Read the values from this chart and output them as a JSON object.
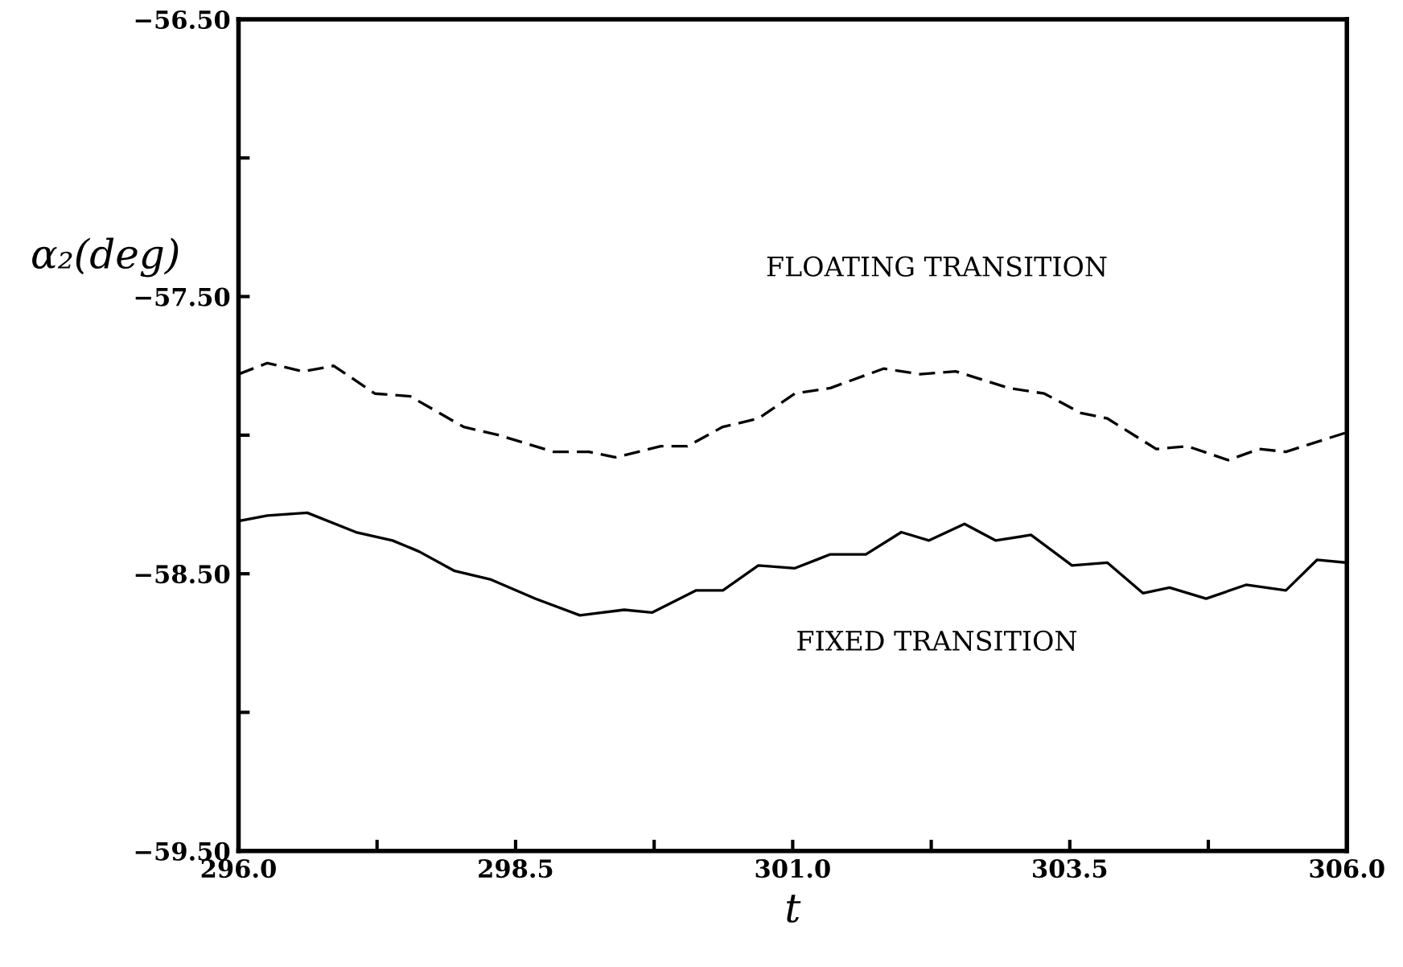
{
  "chart_data": {
    "type": "line",
    "xlabel": "t",
    "ylabel": "α₂(deg)",
    "xlim": [
      296.0,
      306.0
    ],
    "ylim": [
      -59.5,
      -56.5
    ],
    "xticks": [
      {
        "value": 296.0,
        "label": "296.0"
      },
      {
        "value": 297.25,
        "label": null
      },
      {
        "value": 298.5,
        "label": "298.5"
      },
      {
        "value": 299.75,
        "label": null
      },
      {
        "value": 301.0,
        "label": "301.0"
      },
      {
        "value": 302.25,
        "label": null
      },
      {
        "value": 303.5,
        "label": "303.5"
      },
      {
        "value": 304.75,
        "label": null
      },
      {
        "value": 306.0,
        "label": "306.0"
      }
    ],
    "yticks": [
      {
        "value": -59.5,
        "label": "−59.50"
      },
      {
        "value": -59.0,
        "label": null
      },
      {
        "value": -58.5,
        "label": "−58.50"
      },
      {
        "value": -58.0,
        "label": null
      },
      {
        "value": -57.5,
        "label": "−57.50"
      },
      {
        "value": -57.0,
        "label": null
      },
      {
        "value": -56.5,
        "label": "−56.50"
      }
    ],
    "grid": false,
    "legend": false,
    "annotations": [
      "FLOATING TRANSITION",
      "FIXED TRANSITION"
    ],
    "series": [
      {
        "color": "#000000",
        "line_style": "dashed",
        "x": [
          296.0,
          296.26,
          296.58,
          296.86,
          297.23,
          297.55,
          298.03,
          298.35,
          298.84,
          299.16,
          299.4,
          299.81,
          300.05,
          300.37,
          300.69,
          301.02,
          301.34,
          301.82,
          302.15,
          302.47,
          302.95,
          303.27,
          303.6,
          303.84,
          304.28,
          304.56,
          304.93,
          305.21,
          305.45,
          306.0
        ],
        "values": [
          -57.78,
          -57.74,
          -57.77,
          -57.75,
          -57.85,
          -57.86,
          -57.97,
          -58.0,
          -58.06,
          -58.06,
          -58.08,
          -58.04,
          -58.04,
          -57.97,
          -57.94,
          -57.85,
          -57.83,
          -57.76,
          -57.78,
          -57.77,
          -57.83,
          -57.85,
          -57.92,
          -57.94,
          -58.05,
          -58.04,
          -58.09,
          -58.05,
          -58.06,
          -57.99
        ]
      },
      {
        "color": "#000000",
        "line_style": "solid",
        "x": [
          296.0,
          296.26,
          296.62,
          297.06,
          297.39,
          297.63,
          297.95,
          298.27,
          298.68,
          299.08,
          299.48,
          299.73,
          300.13,
          300.37,
          300.69,
          301.02,
          301.34,
          301.66,
          301.98,
          302.23,
          302.55,
          302.83,
          303.15,
          303.52,
          303.84,
          304.16,
          304.4,
          304.73,
          305.09,
          305.45,
          305.73,
          306.0
        ],
        "values": [
          -58.31,
          -58.29,
          -58.28,
          -58.35,
          -58.38,
          -58.42,
          -58.49,
          -58.52,
          -58.59,
          -58.65,
          -58.63,
          -58.64,
          -58.56,
          -58.56,
          -58.47,
          -58.48,
          -58.43,
          -58.43,
          -58.35,
          -58.38,
          -58.32,
          -58.38,
          -58.36,
          -58.47,
          -58.46,
          -58.57,
          -58.55,
          -58.59,
          -58.54,
          -58.56,
          -58.45,
          -58.46
        ]
      }
    ]
  }
}
